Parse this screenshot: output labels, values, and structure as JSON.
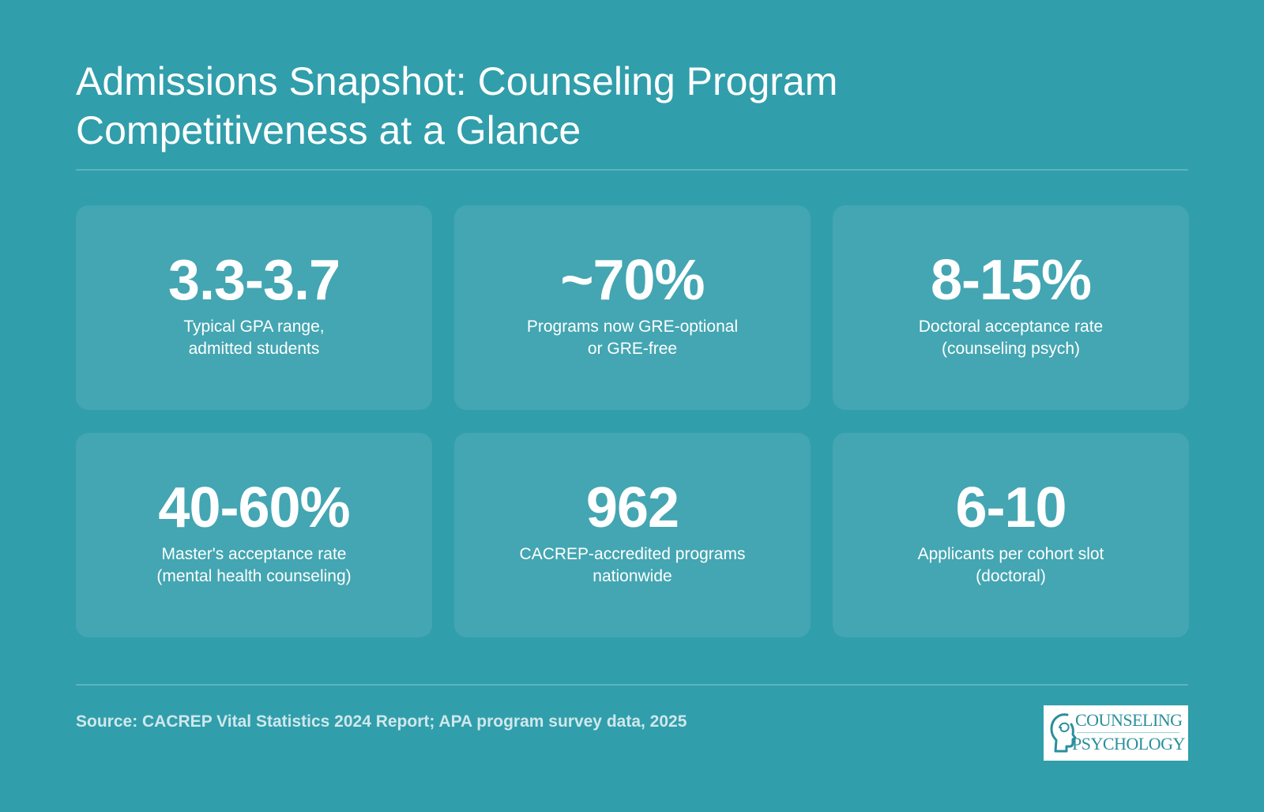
{
  "header": {
    "title_line1": "Admissions Snapshot: Counseling Program",
    "title_line2": "Competitiveness at a Glance"
  },
  "stats": [
    {
      "value": "3.3-3.7",
      "label_line1": "Typical GPA range,",
      "label_line2": "admitted students"
    },
    {
      "value": "~70%",
      "label_line1": "Programs now GRE-optional",
      "label_line2": "or GRE-free"
    },
    {
      "value": "8-15%",
      "label_line1": "Doctoral acceptance rate",
      "label_line2": "(counseling psych)"
    },
    {
      "value": "40-60%",
      "label_line1": "Master's acceptance rate",
      "label_line2": "(mental health counseling)"
    },
    {
      "value": "962",
      "label_line1": "CACREP-accredited programs",
      "label_line2": "nationwide"
    },
    {
      "value": "6-10",
      "label_line1": "Applicants per cohort slot",
      "label_line2": "(doctoral)"
    }
  ],
  "footer": {
    "source": "Source: CACREP Vital Statistics 2024 Report; APA program survey data, 2025"
  },
  "logo": {
    "word1": "COUNSELING",
    "word2": "PSYCHOLOGY",
    "icon": "head-profile-icon"
  },
  "colors": {
    "background": "#319eab",
    "card": "rgba(255,255,255,0.09)",
    "text": "#ffffff",
    "source_text": "#cfe8ec",
    "logo_teal": "#2a8f9c"
  }
}
